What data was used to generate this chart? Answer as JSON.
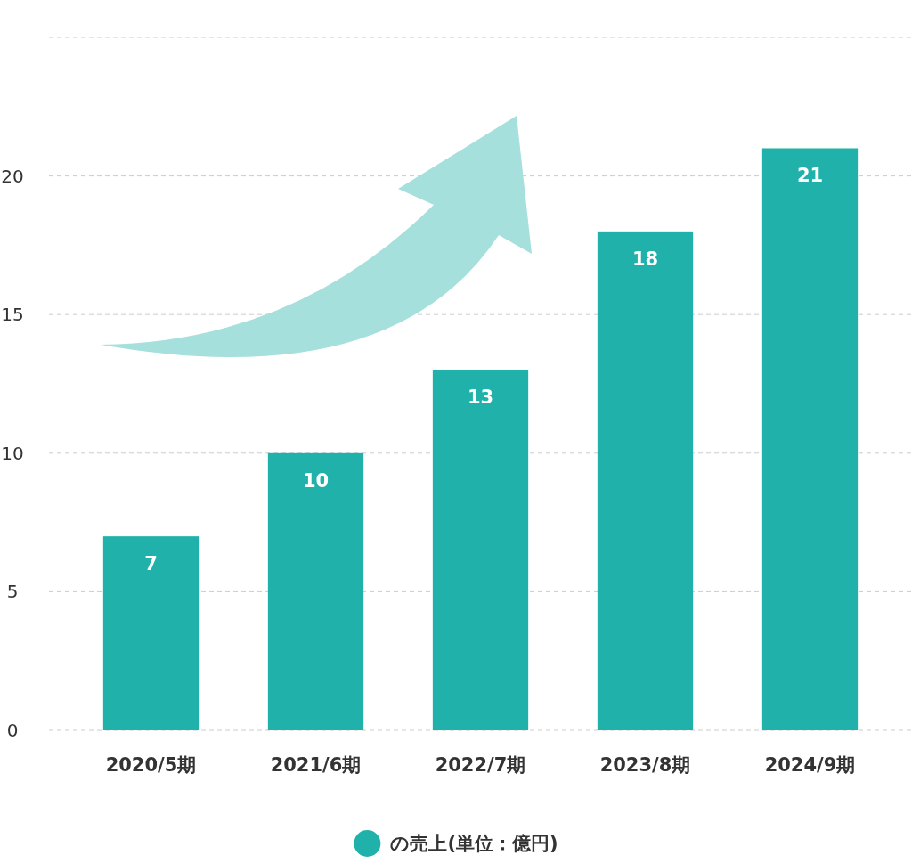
{
  "chart_data": {
    "type": "bar",
    "categories": [
      "2020/5期",
      "2021/6期",
      "2022/7期",
      "2023/8期",
      "2024/9期"
    ],
    "series": [
      {
        "name": "の売上(単位：億円)",
        "color": "#20b2aa",
        "values": [
          7,
          10,
          13,
          18,
          21
        ]
      }
    ],
    "ylim": [
      0,
      25
    ],
    "yticks": [
      0,
      5,
      10,
      15,
      20,
      {
        "value": 25,
        "label": null
      }
    ],
    "grid": "y",
    "data_labels": true,
    "legend": "bottom"
  }
}
